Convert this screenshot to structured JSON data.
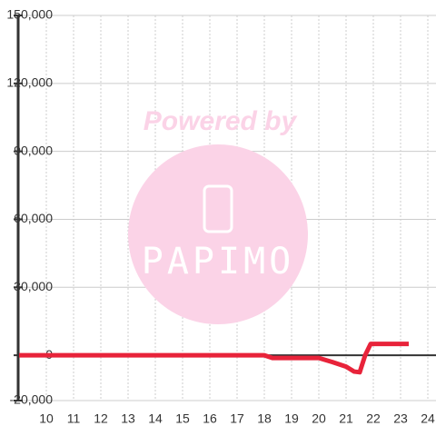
{
  "chart_data": {
    "type": "line",
    "watermark": [
      "Powered by",
      "PAPIMO"
    ],
    "x": [
      9,
      18,
      18.3,
      20,
      20.5,
      21,
      21.3,
      21.5,
      21.7,
      21.9,
      23.3
    ],
    "series": [
      {
        "color": "#e8233a",
        "values": [
          0,
          0,
          -1200,
          -1200,
          -3000,
          -5000,
          -7200,
          -7500,
          0,
          5000,
          5000
        ]
      }
    ],
    "xlim": [
      9,
      24.3
    ],
    "ylim": [
      -20000,
      150000
    ],
    "xticks": [
      10,
      11,
      12,
      13,
      14,
      15,
      16,
      17,
      18,
      19,
      20,
      21,
      22,
      23,
      24
    ],
    "yticks": [
      {
        "value": -20000,
        "label": "-20,000"
      },
      {
        "value": 0,
        "label": "0"
      },
      {
        "value": 30000,
        "label": "30,000"
      },
      {
        "value": 60000,
        "label": "60,000"
      },
      {
        "value": 90000,
        "label": "90,000"
      },
      {
        "value": 120000,
        "label": "120,000"
      },
      {
        "value": 150000,
        "label": "150,000"
      }
    ],
    "grid": true
  }
}
